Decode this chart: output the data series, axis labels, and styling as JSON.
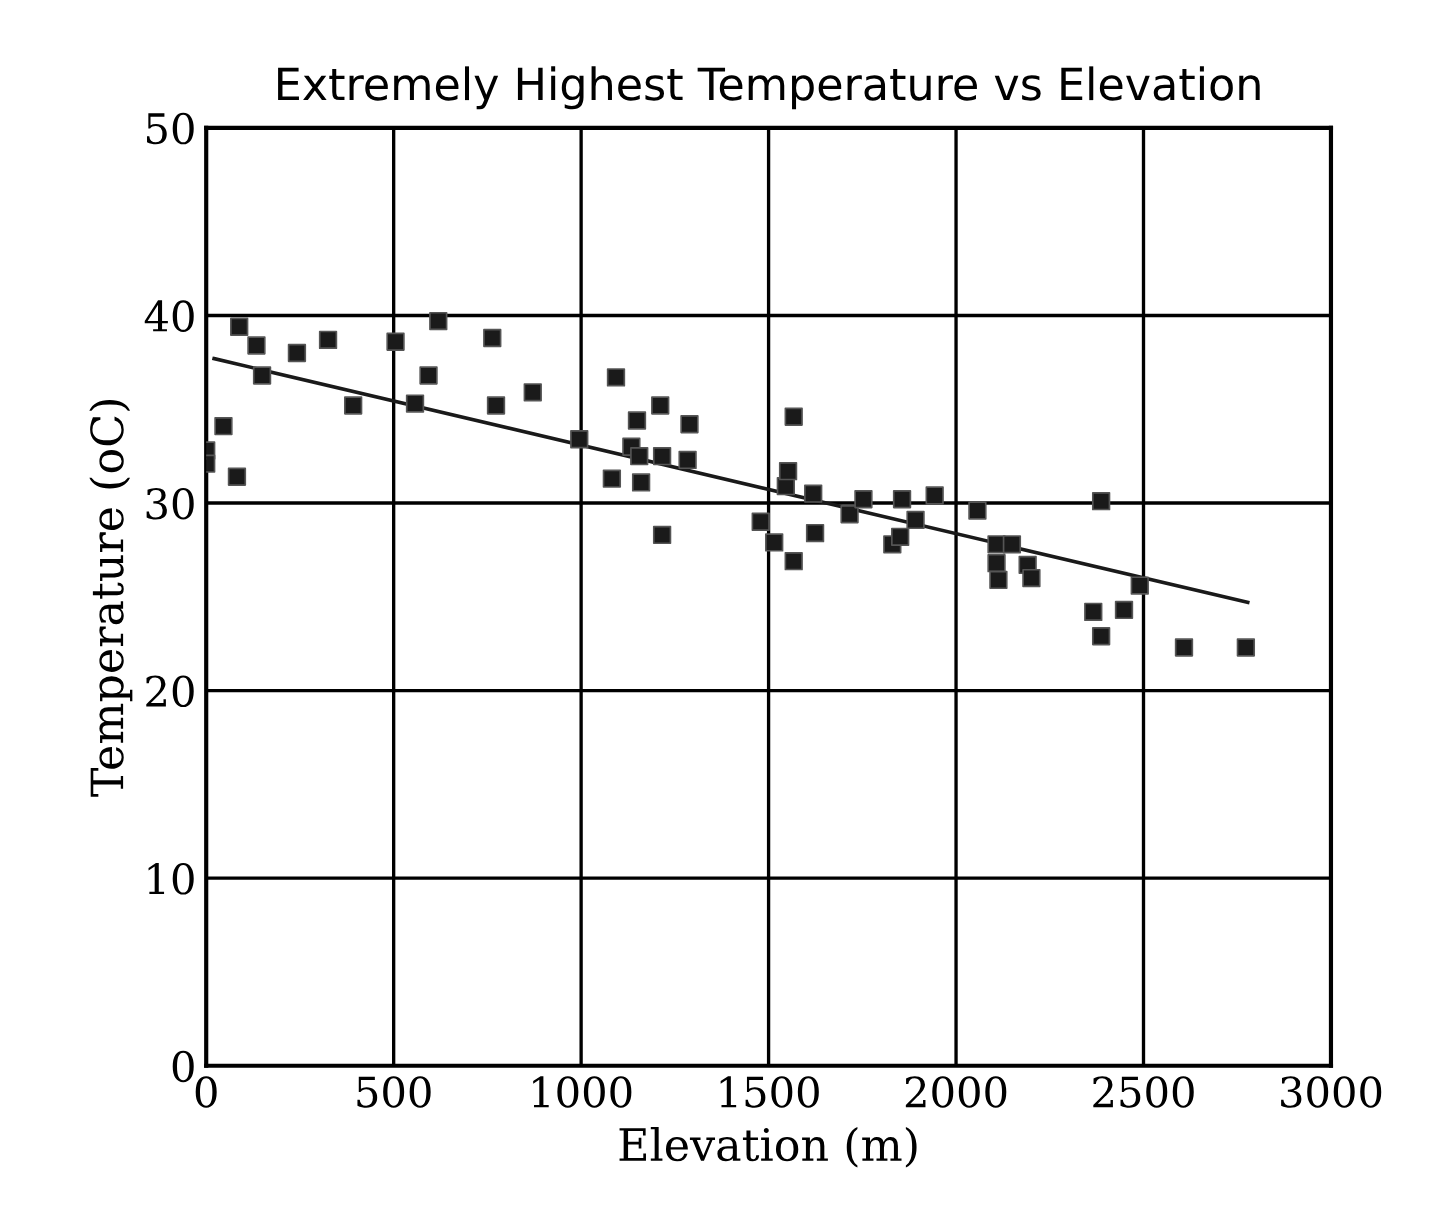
{
  "chart_data": {
    "type": "scatter",
    "title": "Extremely Highest Temperature vs Elevation",
    "xlabel": "Elevation (m)",
    "ylabel": "Temperature (oC)",
    "xlim": [
      0,
      3000
    ],
    "xticks": [
      0,
      500,
      1000,
      1500,
      2000,
      2500,
      3000
    ],
    "ylim": [
      0,
      50
    ],
    "yticks": [
      0,
      10,
      20,
      30,
      40,
      50
    ],
    "grid": true,
    "marker": "square",
    "series": [
      {
        "color": "#1a1a1a",
        "x": [
          0,
          0,
          46,
          82,
          88,
          134,
          149,
          242,
          325,
          392,
          505,
          557,
          593,
          619,
          763,
          773,
          871,
          995,
          1082,
          1093,
          1134,
          1149,
          1155,
          1160,
          1211,
          1216,
          1216,
          1284,
          1289,
          1479,
          1515,
          1546,
          1552,
          1567,
          1619,
          1624,
          1567,
          1716,
          1753,
          1830,
          1851,
          1856,
          1892,
          1943,
          2057,
          2108,
          2108,
          2113,
          2149,
          2191,
          2201,
          2366,
          2387,
          2387,
          2448,
          2490,
          2608,
          2773
        ],
        "values": [
          32.8,
          32.1,
          34.1,
          31.4,
          39.4,
          38.4,
          36.8,
          38.0,
          38.7,
          35.2,
          38.6,
          35.3,
          36.8,
          39.7,
          38.8,
          35.2,
          35.9,
          33.4,
          31.3,
          36.7,
          33.0,
          34.4,
          32.5,
          31.1,
          35.2,
          32.5,
          28.3,
          32.3,
          34.2,
          29.0,
          27.9,
          30.9,
          31.7,
          34.6,
          30.5,
          28.4,
          26.9,
          29.4,
          30.2,
          27.8,
          28.2,
          30.2,
          29.1,
          30.4,
          29.6,
          27.8,
          26.8,
          25.9,
          27.8,
          26.7,
          26.0,
          24.2,
          30.1,
          22.9,
          24.3,
          25.6,
          22.3,
          22.3
        ]
      },
      {
        "type": "line",
        "color": "#1a1a1a",
        "marker": "none",
        "x": [
          21,
          2778
        ],
        "values": [
          37.7,
          24.7
        ]
      }
    ]
  }
}
